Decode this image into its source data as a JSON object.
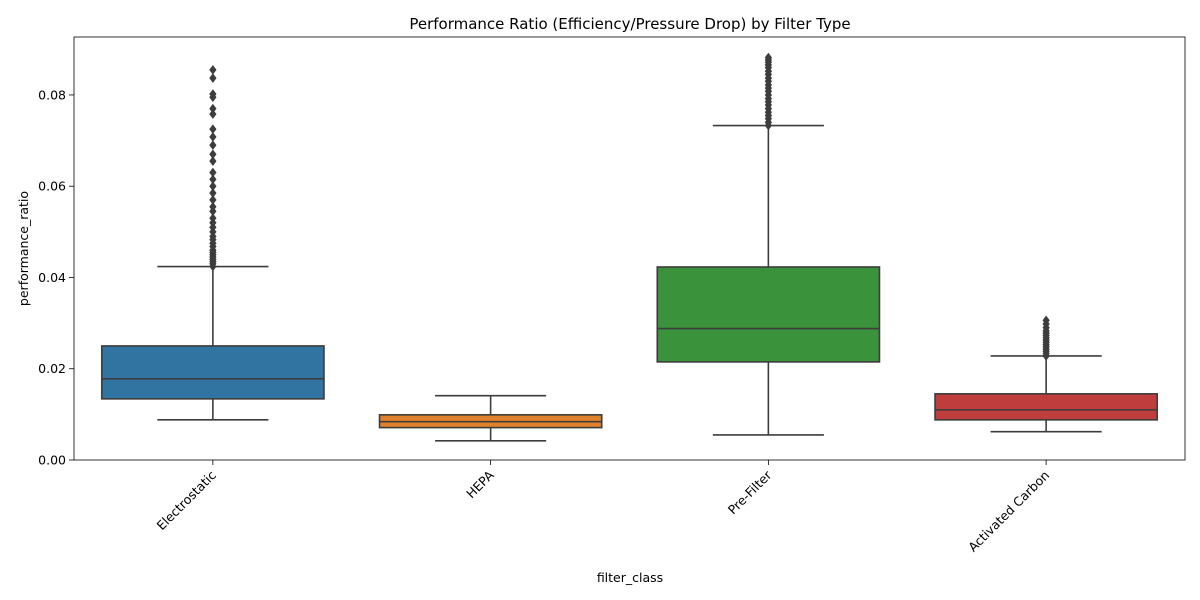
{
  "chart_data": {
    "type": "box",
    "title": "Performance Ratio (Efficiency/Pressure Drop) by Filter Type",
    "xlabel": "filter_class",
    "ylabel": "performance_ratio",
    "ylim": [
      0.0,
      0.0927
    ],
    "yticks": [
      "0.00",
      "0.02",
      "0.04",
      "0.06",
      "0.08"
    ],
    "ytick_values": [
      0.0,
      0.02,
      0.04,
      0.06,
      0.08
    ],
    "grid": false,
    "categories": [
      "Electrostatic",
      "HEPA",
      "Pre-Filter",
      "Activated Carbon"
    ],
    "boxes": [
      {
        "category": "Electrostatic",
        "color": "#3274a1",
        "whisker_low": 0.0088,
        "q1": 0.0134,
        "median": 0.0178,
        "q3": 0.025,
        "whisker_high": 0.0424,
        "outliers": [
          0.0424,
          0.043,
          0.0435,
          0.044,
          0.0445,
          0.045,
          0.0455,
          0.046,
          0.0468,
          0.0475,
          0.0483,
          0.049,
          0.05,
          0.051,
          0.052,
          0.053,
          0.0545,
          0.0555,
          0.057,
          0.0585,
          0.06,
          0.0615,
          0.063,
          0.0655,
          0.067,
          0.069,
          0.0708,
          0.0725,
          0.0758,
          0.077,
          0.0795,
          0.0802,
          0.0837,
          0.0855
        ]
      },
      {
        "category": "HEPA",
        "color": "#e1812c",
        "whisker_low": 0.0042,
        "q1": 0.0071,
        "median": 0.0084,
        "q3": 0.0099,
        "whisker_high": 0.0141,
        "outliers": []
      },
      {
        "category": "Pre-Filter",
        "color": "#3a923a",
        "whisker_low": 0.0055,
        "q1": 0.0215,
        "median": 0.0288,
        "q3": 0.0423,
        "whisker_high": 0.0733,
        "outliers": [
          0.0733,
          0.074,
          0.0748,
          0.0755,
          0.0762,
          0.077,
          0.0778,
          0.0785,
          0.0792,
          0.08,
          0.0808,
          0.0815,
          0.0822,
          0.083,
          0.0837,
          0.0845,
          0.0852,
          0.086,
          0.0866,
          0.0872,
          0.0877,
          0.0882
        ]
      },
      {
        "category": "Activated Carbon",
        "color": "#c03d3e",
        "whisker_low": 0.0062,
        "q1": 0.0088,
        "median": 0.011,
        "q3": 0.0145,
        "whisker_high": 0.0228,
        "outliers": [
          0.0228,
          0.0233,
          0.0238,
          0.0243,
          0.0248,
          0.0253,
          0.0258,
          0.0263,
          0.0268,
          0.0273,
          0.0278,
          0.0283,
          0.029,
          0.0298,
          0.0306
        ]
      }
    ]
  }
}
